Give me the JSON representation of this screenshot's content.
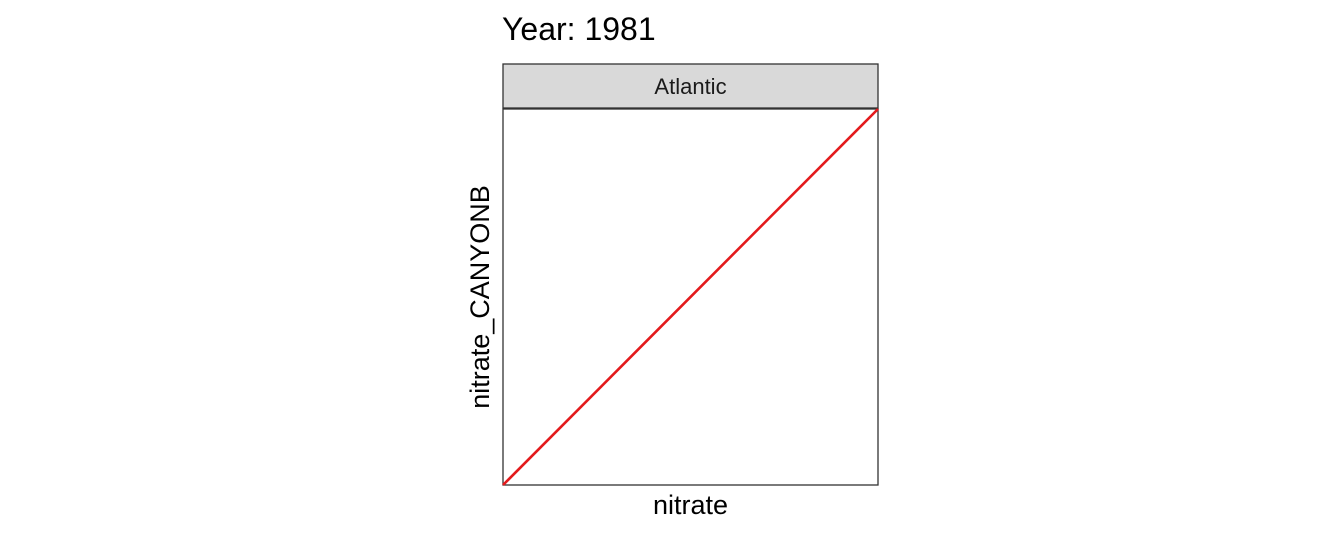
{
  "chart_data": {
    "type": "line",
    "title": "Year: 1981",
    "facet_label": "Atlantic",
    "xlabel": "nitrate",
    "ylabel": "nitrate_CANYONB",
    "xlim": [
      0,
      1
    ],
    "ylim": [
      0,
      1
    ],
    "grid": false,
    "series": [
      {
        "x": [
          0,
          1
        ],
        "y": [
          0,
          1
        ],
        "color": "#e31a1c"
      }
    ]
  }
}
